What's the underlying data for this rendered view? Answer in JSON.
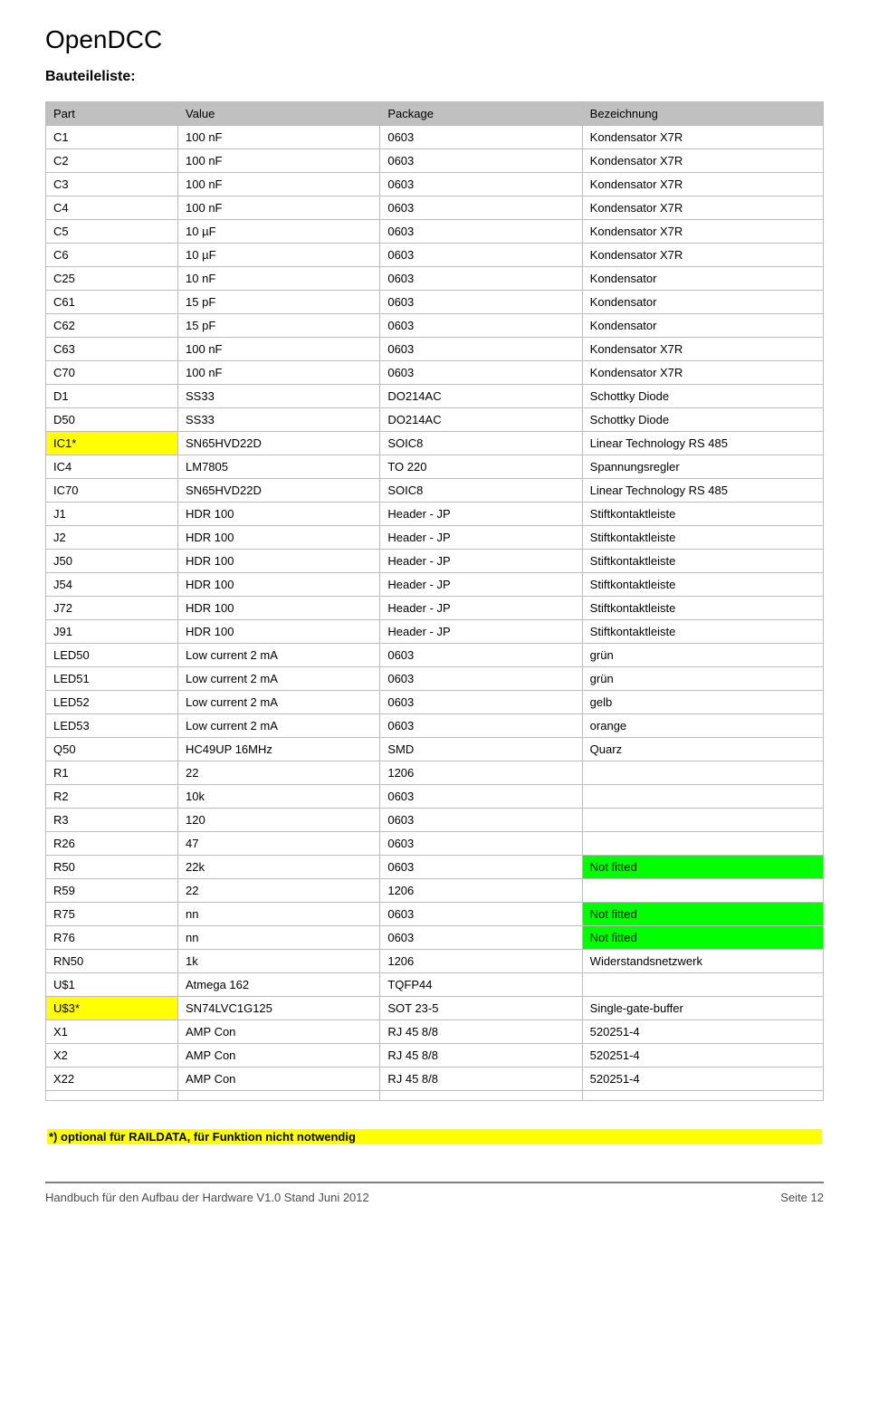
{
  "title": "OpenDCC",
  "subtitle": "Bauteileliste:",
  "colors": {
    "header_bg": "#c0c0c0",
    "highlight_yellow": "#ffff00",
    "highlight_green": "#00ff00",
    "border": "#bdbdbd",
    "footer_rule": "#7f7f7f",
    "text": "#000000"
  },
  "columns": [
    "Part",
    "Value",
    "Package",
    "Bezeichnung"
  ],
  "rows": [
    {
      "part": "C1",
      "value": "100 nF",
      "package": "0603",
      "desc": "Kondensator X7R"
    },
    {
      "part": "C2",
      "value": "100 nF",
      "package": "0603",
      "desc": "Kondensator X7R"
    },
    {
      "part": "C3",
      "value": "100 nF",
      "package": "0603",
      "desc": "Kondensator X7R"
    },
    {
      "part": "C4",
      "value": "100 nF",
      "package": "0603",
      "desc": "Kondensator X7R"
    },
    {
      "part": "C5",
      "value": "10 µF",
      "package": "0603",
      "desc": "Kondensator X7R"
    },
    {
      "part": "C6",
      "value": "10 µF",
      "package": "0603",
      "desc": "Kondensator X7R"
    },
    {
      "part": "C25",
      "value": "10 nF",
      "package": "0603",
      "desc": "Kondensator"
    },
    {
      "part": "C61",
      "value": "15 pF",
      "package": "0603",
      "desc": "Kondensator"
    },
    {
      "part": "C62",
      "value": "15 pF",
      "package": "0603",
      "desc": "Kondensator"
    },
    {
      "part": "C63",
      "value": "100 nF",
      "package": "0603",
      "desc": "Kondensator X7R"
    },
    {
      "part": "C70",
      "value": "100 nF",
      "package": "0603",
      "desc": "Kondensator X7R"
    },
    {
      "part": "D1",
      "value": "SS33",
      "package": "DO214AC",
      "desc": "Schottky Diode"
    },
    {
      "part": "D50",
      "value": "SS33",
      "package": "DO214AC",
      "desc": "Schottky Diode"
    },
    {
      "part": "IC1*",
      "value": "SN65HVD22D",
      "package": "SOIC8",
      "desc": "Linear Technology RS 485",
      "part_highlight": "yellow"
    },
    {
      "part": "IC4",
      "value": "LM7805",
      "package": "TO 220",
      "desc": "Spannungsregler"
    },
    {
      "part": "IC70",
      "value": "SN65HVD22D",
      "package": "SOIC8",
      "desc": "Linear Technology RS 485"
    },
    {
      "part": "J1",
      "value": "HDR 100",
      "package": "Header - JP",
      "desc": "Stiftkontaktleiste"
    },
    {
      "part": "J2",
      "value": "HDR 100",
      "package": "Header - JP",
      "desc": "Stiftkontaktleiste"
    },
    {
      "part": "J50",
      "value": "HDR 100",
      "package": "Header - JP",
      "desc": "Stiftkontaktleiste"
    },
    {
      "part": "J54",
      "value": "HDR 100",
      "package": "Header - JP",
      "desc": "Stiftkontaktleiste"
    },
    {
      "part": "J72",
      "value": "HDR 100",
      "package": "Header - JP",
      "desc": "Stiftkontaktleiste"
    },
    {
      "part": "J91",
      "value": "HDR 100",
      "package": "Header - JP",
      "desc": "Stiftkontaktleiste"
    },
    {
      "part": "LED50",
      "value": "Low current 2 mA",
      "package": "0603",
      "desc": "grün"
    },
    {
      "part": "LED51",
      "value": "Low current 2 mA",
      "package": "0603",
      "desc": "grün"
    },
    {
      "part": "LED52",
      "value": "Low current 2 mA",
      "package": "0603",
      "desc": "gelb"
    },
    {
      "part": "LED53",
      "value": "Low current 2 mA",
      "package": "0603",
      "desc": "orange"
    },
    {
      "part": "Q50",
      "value": "HC49UP 16MHz",
      "package": "SMD",
      "desc": "Quarz"
    },
    {
      "part": "R1",
      "value": "22",
      "package": "1206",
      "desc": ""
    },
    {
      "part": "R2",
      "value": "10k",
      "package": "0603",
      "desc": ""
    },
    {
      "part": "R3",
      "value": "120",
      "package": "0603",
      "desc": ""
    },
    {
      "part": "R26",
      "value": "47",
      "package": "0603",
      "desc": ""
    },
    {
      "part": "R50",
      "value": "22k",
      "package": "0603",
      "desc": "Not fitted",
      "desc_highlight": "green"
    },
    {
      "part": "R59",
      "value": "22",
      "package": "1206",
      "desc": ""
    },
    {
      "part": "R75",
      "value": "nn",
      "package": "0603",
      "desc": "Not fitted",
      "desc_highlight": "green"
    },
    {
      "part": "R76",
      "value": "nn",
      "package": "0603",
      "desc": "Not fitted",
      "desc_highlight": "green"
    },
    {
      "part": "RN50",
      "value": "1k",
      "package": "1206",
      "desc": "Widerstandsnetzwerk"
    },
    {
      "part": "U$1",
      "value": "Atmega 162",
      "package": "TQFP44",
      "desc": ""
    },
    {
      "part": "U$3*",
      "value": "SN74LVC1G125",
      "package": "SOT 23-5",
      "desc": "Single-gate-buffer",
      "part_highlight": "yellow"
    },
    {
      "part": "X1",
      "value": "AMP Con",
      "package": "RJ 45 8/8",
      "desc": "520251-4"
    },
    {
      "part": "X2",
      "value": "AMP Con",
      "package": "RJ 45 8/8",
      "desc": "520251-4"
    },
    {
      "part": "X22",
      "value": "AMP Con",
      "package": "RJ 45 8/8",
      "desc": "520251-4"
    },
    {
      "part": "",
      "value": "",
      "package": "",
      "desc": ""
    }
  ],
  "footnote": "*) optional für RAILDATA,  für Funktion nicht notwendig",
  "footer_left": "Handbuch für den Aufbau der Hardware V1.0   Stand Juni 2012",
  "footer_right_label": "Seite ",
  "footer_right_page": "12"
}
